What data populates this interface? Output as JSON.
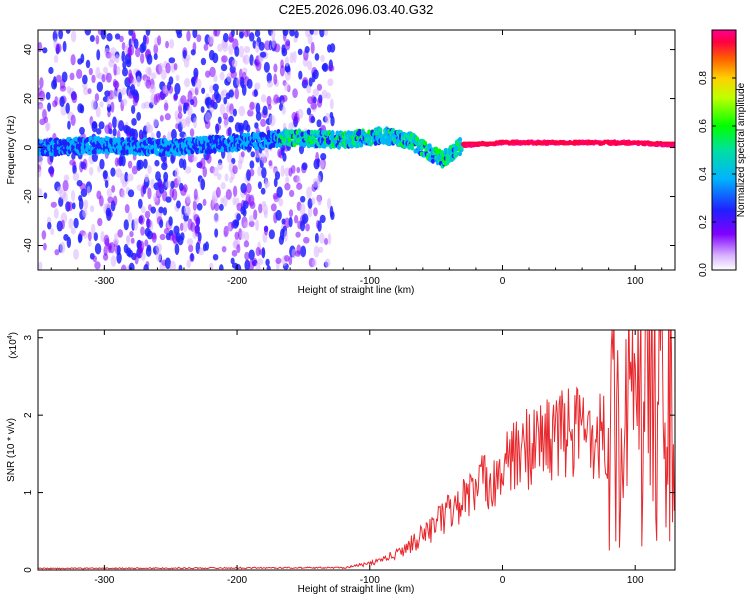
{
  "title": "C2E5.2026.096.03.40.G32",
  "top_panel": {
    "xlabel": "Height of straight line (km)",
    "ylabel": "Frequency (Hz)",
    "xlim": [
      -350,
      130
    ],
    "ylim": [
      -50,
      48
    ],
    "xticks": [
      -300,
      -200,
      -100,
      0,
      100
    ],
    "yticks": [
      -40,
      -20,
      0,
      20,
      40
    ],
    "colorbar_label": "Normalized spectral amplitude",
    "colorbar_ticks": [
      "0.0",
      "0.2",
      "0.4",
      "0.6",
      "0.8"
    ],
    "colorbar_values": [
      0.0,
      0.2,
      0.4,
      0.6,
      0.8
    ]
  },
  "bottom_panel": {
    "xlabel": "Height of straight line (km)",
    "ylabel": "SNR (10 * v/v)",
    "multiplier_base": "(x10",
    "multiplier_exp": "4",
    "multiplier_close": ")",
    "xlim": [
      -350,
      130
    ],
    "ylim": [
      0,
      3.1
    ],
    "xticks": [
      -300,
      -200,
      -100,
      0,
      100
    ],
    "yticks": [
      0,
      1,
      2,
      3
    ],
    "line_color": "#e8282d"
  },
  "chart_data": [
    {
      "type": "heatmap",
      "title": "C2E5.2026.096.03.40.G32",
      "xlabel": "Height of straight line (km)",
      "ylabel": "Frequency (Hz)",
      "xlim": [
        -350,
        130
      ],
      "ylim": [
        -50,
        48
      ],
      "colorbar": {
        "label": "Normalized spectral amplitude",
        "range": [
          0,
          1
        ]
      },
      "ridge": {
        "description_points_x": [
          -350,
          -300,
          -250,
          -200,
          -160,
          -120,
          -90,
          -70,
          -55,
          -45,
          -40,
          -30,
          0,
          50,
          100,
          130
        ],
        "description_points_y": [
          0,
          1,
          0,
          2,
          4,
          3,
          5,
          3,
          -2,
          -5,
          -3,
          1,
          2,
          2,
          2,
          1
        ]
      }
    },
    {
      "type": "line",
      "title": "",
      "xlabel": "Height of straight line (km)",
      "ylabel": "SNR (10 * v/v) (x10^4)",
      "xlim": [
        -350,
        130
      ],
      "ylim": [
        0,
        3.1
      ],
      "envelope_x": [
        -350,
        -120,
        -100,
        -80,
        -60,
        -40,
        -20,
        0,
        20,
        40,
        60,
        80,
        100,
        120,
        130
      ],
      "envelope_y": [
        0.02,
        0.03,
        0.08,
        0.2,
        0.45,
        0.75,
        1.05,
        1.3,
        1.6,
        1.75,
        1.8,
        1.75,
        1.9,
        2.4,
        1.9
      ]
    }
  ]
}
